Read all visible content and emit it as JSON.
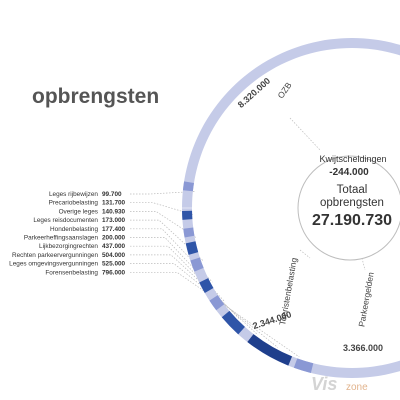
{
  "page_title": "opbrengsten",
  "brand": {
    "vis": "Vis",
    "zone": "zone"
  },
  "chart_data": {
    "type": "pie",
    "center": {
      "deduction_label": "Kwijtscheldingen",
      "deduction_value": "-244.000",
      "total_label_line1": "Totaal",
      "total_label_line2": "opbrengsten",
      "total_value": "27.190.730"
    },
    "labeled_segments": [
      {
        "name": "OZB",
        "value_text": "8.320.000",
        "value": 8320000
      },
      {
        "name": "Parkeergelden",
        "value_text": "3.366.000",
        "value": 3366000
      },
      {
        "name": "Toeristenbelasting",
        "value_text": "2.344.000",
        "value": 2344000
      }
    ],
    "small_items": [
      {
        "name": "Leges rijbewijzen",
        "value_text": "99.700",
        "value": 99700
      },
      {
        "name": "Precariobelasting",
        "value_text": "131.700",
        "value": 131700
      },
      {
        "name": "Overige leges",
        "value_text": "140.930",
        "value": 140930
      },
      {
        "name": "Leges reisdocumenten",
        "value_text": "173.000",
        "value": 173000
      },
      {
        "name": "Hondenbelasting",
        "value_text": "177.400",
        "value": 177400
      },
      {
        "name": "Parkeerheffingsaanslagen",
        "value_text": "200.000",
        "value": 200000
      },
      {
        "name": "Lijkbezorgingrechten",
        "value_text": "437.000",
        "value": 437000
      },
      {
        "name": "Rechten parkeervergunningen",
        "value_text": "504.000",
        "value": 504000
      },
      {
        "name": "Leges omgevingsvergunningen",
        "value_text": "525.000",
        "value": 525000
      },
      {
        "name": "Forensenbelasting",
        "value_text": "796.000",
        "value": 796000
      }
    ],
    "colors": {
      "ring_light": "#c5cbe8",
      "ring_mid": "#8a98d4",
      "ring_dark": "#2f55a8",
      "ring_darker": "#1f3f8c",
      "leader": "#bbbbbb",
      "text": "#333333"
    }
  }
}
